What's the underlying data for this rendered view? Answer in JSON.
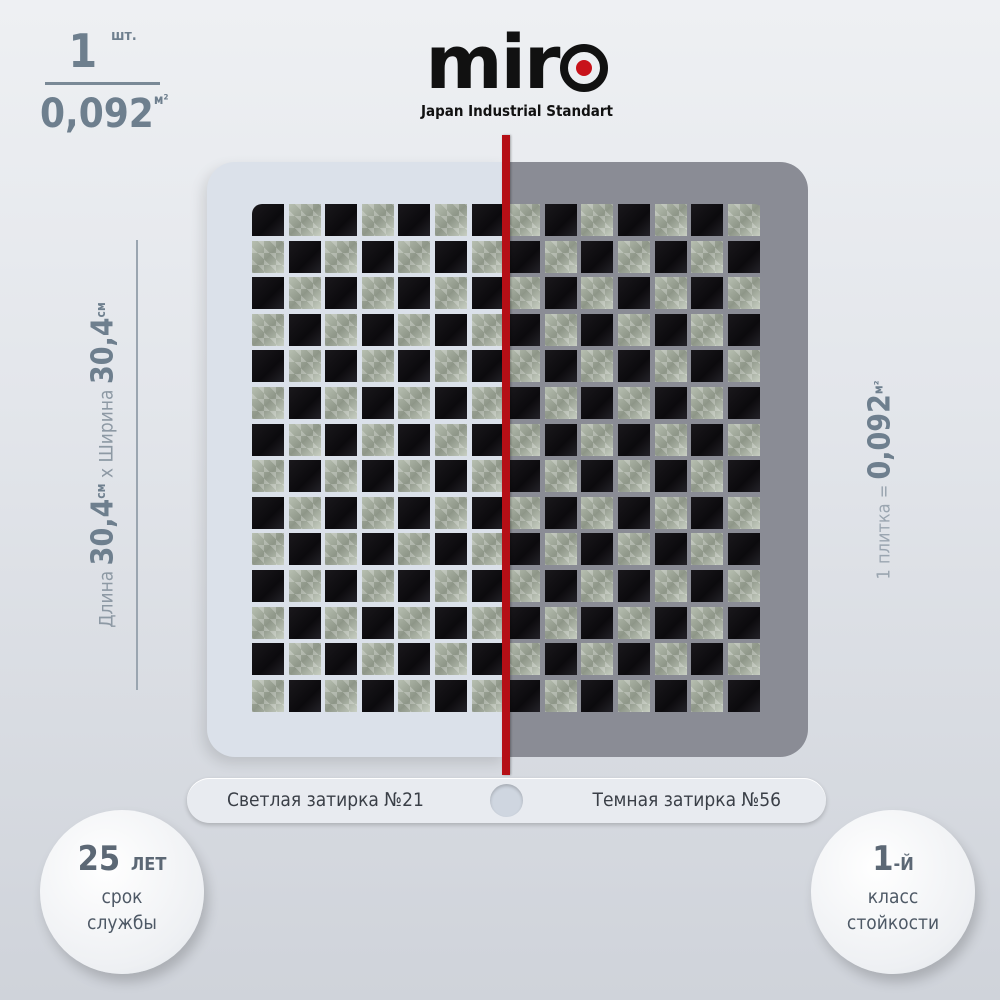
{
  "quantity": {
    "count": "1",
    "count_unit": "шт.",
    "area": "0,092",
    "area_unit": "м²"
  },
  "brand": {
    "name": "miro",
    "tagline": "Japan Industrial Standart",
    "accent_color": "#c8121a"
  },
  "dimensions": {
    "length_label": "Длина",
    "length_value": "30,4",
    "length_unit": "см",
    "separator": "x",
    "width_label": "Ширина",
    "width_value": "30,4",
    "width_unit": "см"
  },
  "tile_area": {
    "label": "1 плитка",
    "equals": "=",
    "value": "0,092",
    "unit": "м²"
  },
  "mosaic": {
    "rows": 14,
    "cols": 14,
    "pattern": "checkerboard",
    "tile_colors": [
      "black",
      "silver"
    ],
    "light_grout_color": "#dbe1ea",
    "dark_grout_color": "#8a8c95"
  },
  "grout": {
    "light_label": "Светлая затирка №21",
    "dark_label": "Темная затирка №56"
  },
  "badges": {
    "lifetime": {
      "value": "25",
      "unit": "ЛЕТ",
      "line1": "срок",
      "line2": "службы"
    },
    "durability": {
      "value": "1",
      "suffix": "-Й",
      "line1": "класс",
      "line2": "стойкости"
    }
  }
}
